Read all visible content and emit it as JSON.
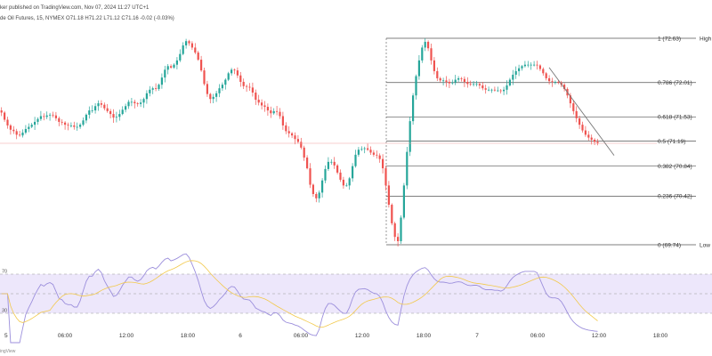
{
  "header": {
    "line1": "ker published on TradingView.com, Nov 07, 2024 11:27 UTC+1",
    "line2": "de Oil Futures, 15, NYMEX O71.18 H71.22 L71.12 C71.16 -0.02 (-0.03%)"
  },
  "watermark": "ingView",
  "colors": {
    "up": "#26a69a",
    "down": "#ef5350",
    "rsi": "#9c8fdc",
    "rsi_ma": "#f2c94c",
    "rsi_band": "#ede7fb",
    "fib_line": "#555555",
    "price_line": "#f0a0a0",
    "trendline": "#777777"
  },
  "chart_data": {
    "type": "candlestick",
    "instrument": "de Oil Futures, 15, NYMEX",
    "fib_levels": [
      {
        "ratio_label": "1",
        "price": 72.63
      },
      {
        "ratio_label": "0.786",
        "price": 72.01
      },
      {
        "ratio_label": "0.618",
        "price": 71.53
      },
      {
        "ratio_label": "0.5",
        "price": 71.19
      },
      {
        "ratio_label": "0.382",
        "price": 70.84
      },
      {
        "ratio_label": "0.236",
        "price": 70.42
      },
      {
        "ratio_label": "0",
        "price": 69.74
      }
    ],
    "right_labels": {
      "high": "High",
      "low": "Low"
    },
    "x_ticks": [
      "5",
      "06:00",
      "12:00",
      "18:00",
      "6",
      "06:00",
      "12:00",
      "18:00",
      "7",
      "06:00",
      "12:00",
      "18:00"
    ],
    "rsi_levels": [
      70,
      50,
      30
    ],
    "rsi_tick_labels": [
      "70",
      "30"
    ],
    "closes": [
      71.59,
      71.49,
      71.41,
      71.35,
      71.33,
      71.28,
      71.27,
      71.31,
      71.36,
      71.39,
      71.42,
      71.46,
      71.5,
      71.54,
      71.53,
      71.55,
      71.56,
      71.55,
      71.51,
      71.46,
      71.45,
      71.42,
      71.41,
      71.41,
      71.39,
      71.39,
      71.42,
      71.48,
      71.56,
      71.62,
      71.62,
      71.68,
      71.72,
      71.7,
      71.65,
      71.61,
      71.57,
      71.52,
      71.53,
      71.57,
      71.63,
      71.68,
      71.74,
      71.74,
      71.72,
      71.71,
      71.73,
      71.78,
      71.86,
      71.91,
      71.93,
      71.92,
      71.98,
      72.08,
      72.19,
      72.24,
      72.22,
      72.26,
      72.32,
      72.41,
      72.53,
      72.59,
      72.56,
      72.5,
      72.43,
      72.33,
      72.18,
      71.99,
      71.85,
      71.78,
      71.81,
      71.86,
      71.93,
      71.98,
      72.05,
      72.14,
      72.19,
      72.18,
      72.11,
      72.02,
      71.96,
      71.95,
      71.94,
      71.87,
      71.77,
      71.73,
      71.69,
      71.67,
      71.62,
      71.58,
      71.61,
      71.6,
      71.54,
      71.41,
      71.33,
      71.3,
      71.27,
      71.22,
      71.18,
      71.1,
      70.96,
      70.81,
      70.58,
      70.45,
      70.39,
      70.47,
      70.64,
      70.8,
      70.9,
      70.9,
      70.85,
      70.75,
      70.65,
      70.57,
      70.57,
      70.67,
      70.84,
      71.0,
      71.07,
      71.08,
      71.09,
      71.07,
      71.03,
      71.0,
      70.99,
      70.94,
      70.81,
      70.57,
      70.3,
      70.04,
      69.85,
      69.79,
      70.12,
      70.57,
      71.04,
      71.47,
      71.83,
      72.1,
      72.32,
      72.5,
      72.58,
      72.49,
      72.32,
      72.17,
      72.07,
      72.04,
      72.04,
      72.02,
      72.0,
      72.01,
      72.05,
      72.07,
      72.06,
      72.02,
      71.99,
      71.98,
      71.99,
      71.99,
      71.97,
      71.93,
      71.91,
      71.91,
      71.91,
      71.9,
      71.9,
      71.89,
      71.91,
      71.97,
      72.05,
      72.12,
      72.17,
      72.21,
      72.24,
      72.26,
      72.26,
      72.26,
      72.26,
      72.25,
      72.2,
      72.14,
      72.07,
      72.03,
      72.02,
      72.02,
      72.01,
      71.98,
      71.92,
      71.83,
      71.72,
      71.61,
      71.51,
      71.42,
      71.34,
      71.28,
      71.24,
      71.21,
      71.18,
      71.16
    ]
  }
}
